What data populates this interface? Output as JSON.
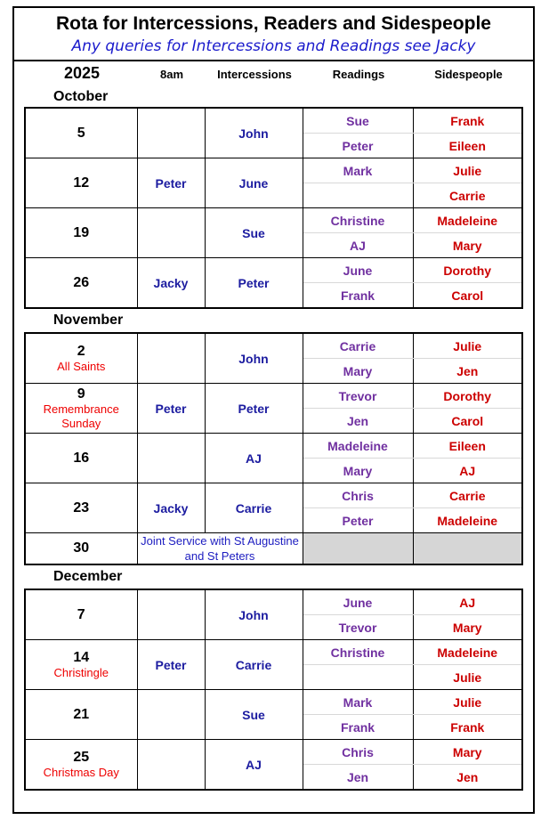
{
  "header": {
    "title": "Rota for Intercessions, Readers and Sidespeople",
    "subtitle": "Any queries  for Intercessions and Readings see Jacky"
  },
  "columns": {
    "year": "2025",
    "early": "8am",
    "intercessions": "Intercessions",
    "readings": "Readings",
    "sidespeople": "Sidespeople"
  },
  "colors": {
    "intercessions": "#1c1ca0",
    "readings": "#7030a0",
    "sidespeople": "#cc0000",
    "notes": "#ee0000",
    "unstaffed": "#d6d6d6"
  },
  "months": [
    {
      "name": "October",
      "rows": [
        {
          "date": "5",
          "note": "",
          "early": "",
          "intercessions": "John",
          "readings": [
            "Sue",
            "Peter"
          ],
          "sidespeople": [
            "Frank",
            "Eileen"
          ]
        },
        {
          "date": "12",
          "note": "",
          "early": "Peter",
          "intercessions": "June",
          "readings": [
            "Mark",
            ""
          ],
          "sidespeople": [
            "Julie",
            "Carrie"
          ]
        },
        {
          "date": "19",
          "note": "",
          "early": "",
          "intercessions": "Sue",
          "readings": [
            "Christine",
            "AJ"
          ],
          "sidespeople": [
            "Madeleine",
            "Mary"
          ]
        },
        {
          "date": "26",
          "note": "",
          "early": "Jacky",
          "intercessions": "Peter",
          "readings": [
            "June",
            "Frank"
          ],
          "sidespeople": [
            "Dorothy",
            "Carol"
          ]
        }
      ]
    },
    {
      "name": "November",
      "rows": [
        {
          "date": "2",
          "note": "All Saints",
          "early": "",
          "intercessions": "John",
          "readings": [
            "Carrie",
            "Mary"
          ],
          "sidespeople": [
            "Julie",
            "Jen"
          ]
        },
        {
          "date": "9",
          "note": "Remembrance Sunday",
          "early": "Peter",
          "intercessions": "Peter",
          "readings": [
            "Trevor",
            "Jen"
          ],
          "sidespeople": [
            "Dorothy",
            "Carol"
          ]
        },
        {
          "date": "16",
          "note": "",
          "early": "",
          "intercessions": "AJ",
          "readings": [
            "Madeleine",
            "Mary"
          ],
          "sidespeople": [
            "Eileen",
            "AJ"
          ]
        },
        {
          "date": "23",
          "note": "",
          "early": "Jacky",
          "intercessions": "Carrie",
          "readings": [
            "Chris",
            "Peter"
          ],
          "sidespeople": [
            "Carrie",
            "Madeleine"
          ]
        },
        {
          "date": "30",
          "note": "",
          "joint": "Joint Service with St Augustine and St Peters"
        }
      ]
    },
    {
      "name": "December",
      "rows": [
        {
          "date": "7",
          "note": "",
          "early": "",
          "intercessions": "John",
          "readings": [
            "June",
            "Trevor"
          ],
          "sidespeople": [
            "AJ",
            "Mary"
          ]
        },
        {
          "date": "14",
          "note": "Christingle",
          "early": "Peter",
          "intercessions": "Carrie",
          "readings": [
            "Christine",
            ""
          ],
          "sidespeople": [
            "Madeleine",
            "Julie"
          ]
        },
        {
          "date": "21",
          "note": "",
          "early": "",
          "intercessions": "Sue",
          "readings": [
            "Mark",
            "Frank"
          ],
          "sidespeople": [
            "Julie",
            "Frank"
          ]
        },
        {
          "date": "25",
          "note": "Christmas Day",
          "early": "",
          "intercessions": "AJ",
          "readings": [
            "Chris",
            "Jen"
          ],
          "sidespeople": [
            "Mary",
            "Jen"
          ]
        }
      ]
    }
  ]
}
